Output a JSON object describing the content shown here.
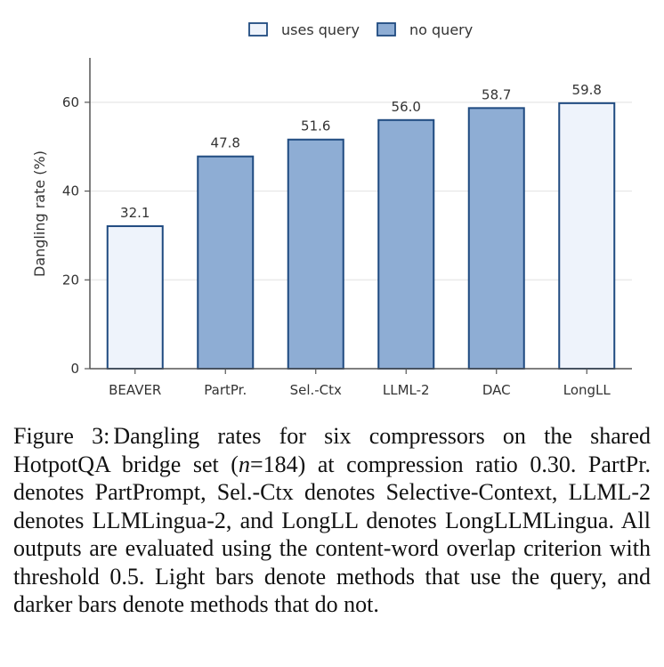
{
  "chart_data": {
    "type": "bar",
    "categories": [
      "BEAVER",
      "PartPr.",
      "Sel.-Ctx",
      "LLML-2",
      "DAC",
      "LongLL"
    ],
    "values": [
      32.1,
      47.8,
      51.6,
      56.0,
      58.7,
      59.8
    ],
    "value_labels": [
      "32.1",
      "47.8",
      "51.6",
      "56.0",
      "58.7",
      "59.8"
    ],
    "uses_query": [
      true,
      false,
      false,
      false,
      false,
      true
    ],
    "ylabel": "Dangling rate (%)",
    "xlabel": "",
    "ylim": [
      0,
      70
    ],
    "yticks": [
      0,
      20,
      40,
      60
    ],
    "grid": "horizontal",
    "legend": {
      "position": "top-center",
      "entries": [
        {
          "label": "uses query",
          "fill": "#eef3fb",
          "stroke": "#1f4a80"
        },
        {
          "label": "no query",
          "fill": "#8eadd4",
          "stroke": "#1f4a80"
        }
      ]
    },
    "colors": {
      "uses_query_fill": "#eef3fb",
      "no_query_fill": "#8eadd4",
      "bar_stroke": "#1f4a80",
      "grid": "#e6e6e6",
      "axis": "#555555"
    }
  },
  "caption": {
    "label": "Figure 3:",
    "text_1": "Dangling rates for six compressors on the shared HotpotQA bridge set (",
    "math_n": "n",
    "math_eq": "=184",
    "text_2": ") at compression ratio ",
    "ratio": "0.30",
    "text_3": ". PartPr. denotes PartPrompt, Sel.-Ctx denotes Selective-Context, LLML-2 denotes LLMLingua-2, and LongLL denotes LongLLMLingua. All outputs are evaluated using the content-word overlap criterion with threshold ",
    "threshold": "0.5",
    "text_4": ". Light bars denote methods that use the query, and darker bars denote methods that do not."
  }
}
